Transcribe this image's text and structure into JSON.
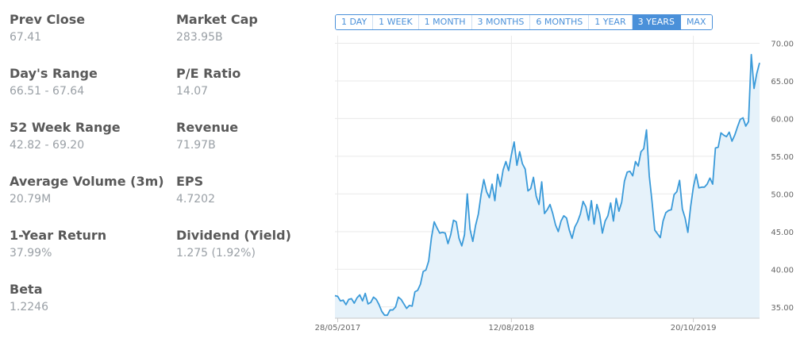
{
  "stats": [
    {
      "label": "Prev Close",
      "value": "67.41"
    },
    {
      "label": "Market Cap",
      "value": "283.95B"
    },
    {
      "label": "Day's Range",
      "value": "66.51 - 67.64"
    },
    {
      "label": "P/E Ratio",
      "value": "14.07"
    },
    {
      "label": "52 Week Range",
      "value": "42.82 - 69.20"
    },
    {
      "label": "Revenue",
      "value": "71.97B"
    },
    {
      "label": "Average Volume (3m)",
      "value": "20.79M"
    },
    {
      "label": "EPS",
      "value": "4.7202"
    },
    {
      "label": "1-Year Return",
      "value": "37.99%"
    },
    {
      "label": "Dividend (Yield)",
      "value": "1.275 (1.92%)"
    },
    {
      "label": "Beta",
      "value": "1.2246"
    }
  ],
  "range_tabs": [
    "1 DAY",
    "1 WEEK",
    "1 MONTH",
    "3 MONTHS",
    "6 MONTHS",
    "1 YEAR",
    "3 YEARS",
    "MAX"
  ],
  "active_range": "3 YEARS",
  "colors": {
    "line": "#3a9ad9",
    "fill": "#e6f2fa",
    "accent": "#4a90d9",
    "grid": "#e9e9e9"
  },
  "chart_data": {
    "type": "area",
    "title": "",
    "xlabel": "",
    "ylabel": "",
    "ylim": [
      33.5,
      71
    ],
    "y_ticks": [
      "70.00",
      "65.00",
      "60.00",
      "55.00",
      "50.00",
      "45.00",
      "40.00",
      "35.00"
    ],
    "x_ticks": [
      "28/05/2017",
      "12/08/2018",
      "20/10/2019"
    ],
    "x_tick_positions": [
      1,
      64,
      130
    ],
    "grid": "horizontal",
    "series": [
      {
        "values": [
          36.5,
          36.4,
          35.8,
          35.9,
          35.3,
          36.0,
          36.1,
          35.5,
          36.2,
          36.6,
          35.8,
          36.8,
          35.4,
          35.6,
          36.3,
          36.0,
          35.3,
          34.4,
          33.9,
          33.9,
          34.6,
          34.6,
          35.0,
          36.3,
          36.0,
          35.4,
          34.8,
          35.2,
          35.1,
          37.0,
          37.2,
          38.0,
          39.7,
          39.9,
          41.1,
          44.2,
          46.3,
          45.5,
          44.8,
          44.9,
          44.8,
          43.4,
          44.6,
          46.5,
          46.3,
          44.1,
          43.1,
          44.6,
          50.0,
          45.3,
          43.7,
          45.8,
          47.3,
          49.9,
          51.9,
          50.3,
          49.5,
          51.3,
          49.1,
          52.6,
          51.0,
          53.2,
          54.3,
          53.1,
          55.2,
          56.9,
          53.8,
          55.6,
          54.0,
          53.3,
          50.4,
          50.7,
          52.2,
          49.7,
          48.6,
          51.6,
          47.4,
          47.9,
          48.6,
          47.4,
          45.9,
          45.0,
          46.4,
          47.1,
          46.8,
          45.2,
          44.1,
          45.6,
          46.3,
          47.3,
          49.0,
          48.3,
          46.5,
          49.1,
          46.0,
          48.6,
          47.3,
          44.8,
          46.4,
          47.1,
          48.8,
          46.4,
          49.4,
          47.7,
          48.9,
          51.7,
          52.9,
          53.0,
          52.4,
          54.3,
          53.7,
          55.6,
          56.0,
          58.5,
          52.4,
          49.0,
          45.2,
          44.7,
          44.2,
          46.4,
          47.5,
          47.8,
          47.9,
          49.9,
          50.3,
          51.8,
          48.0,
          46.8,
          44.9,
          48.3,
          50.9,
          52.6,
          50.8,
          50.9,
          50.9,
          51.3,
          52.1,
          51.3,
          56.1,
          56.2,
          58.1,
          57.8,
          57.6,
          58.2,
          57.0,
          57.8,
          58.9,
          59.9,
          60.1,
          59.0,
          59.6,
          68.5,
          64.0,
          66.0,
          67.4
        ]
      }
    ]
  }
}
